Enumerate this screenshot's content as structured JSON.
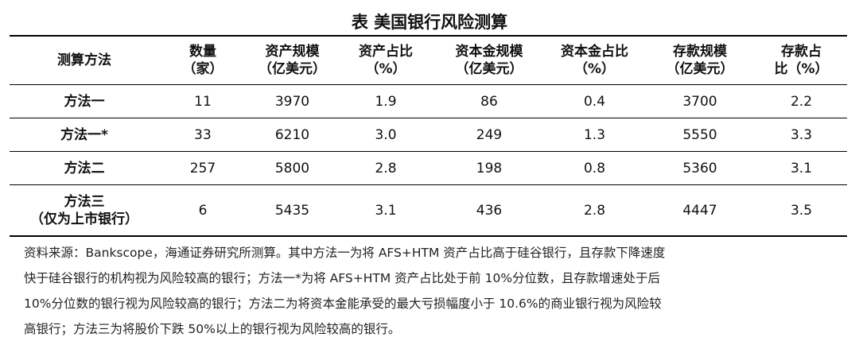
{
  "title": "表  美国银行风险测算",
  "table": {
    "header": [
      [
        "测算方法"
      ],
      [
        "数量",
        "（家）"
      ],
      [
        "资产规模",
        "（亿美元）"
      ],
      [
        "资产占比",
        "（%）"
      ],
      [
        "资本金规模",
        "（亿美元）"
      ],
      [
        "资本金占比",
        "（%）"
      ],
      [
        "存款规模",
        "（亿美元）"
      ],
      [
        "存款占",
        "比（%）"
      ]
    ],
    "rows": [
      [
        [
          "方法一"
        ],
        "11",
        "3970",
        "1.9",
        "86",
        "0.4",
        "3700",
        "2.2"
      ],
      [
        [
          "方法一*"
        ],
        "33",
        "6210",
        "3.0",
        "249",
        "1.3",
        "5550",
        "3.3"
      ],
      [
        [
          "方法二"
        ],
        "257",
        "5800",
        "2.8",
        "198",
        "0.8",
        "5360",
        "3.1"
      ],
      [
        [
          "方法三",
          "（仅为上市银行）"
        ],
        "6",
        "5435",
        "3.1",
        "436",
        "2.8",
        "4447",
        "3.5"
      ]
    ]
  },
  "note": [
    "资料来源：Bankscope，海通证券研究所测算。其中方法一为将 AFS+HTM 资产占比高于硅谷银行，且存款下降速度",
    "快于硅谷银行的机构视为风险较高的银行；方法一*为将 AFS+HTM 资产占比处于前 10%分位数，且存款增速处于后",
    "10%分位数的银行视为风险较高的银行；方法二为将资本金能承受的最大亏损幅度小于 10.6%的商业银行视为风险较",
    "高银行；方法三为将股价下跌 50%以上的银行视为风险较高的银行。"
  ]
}
